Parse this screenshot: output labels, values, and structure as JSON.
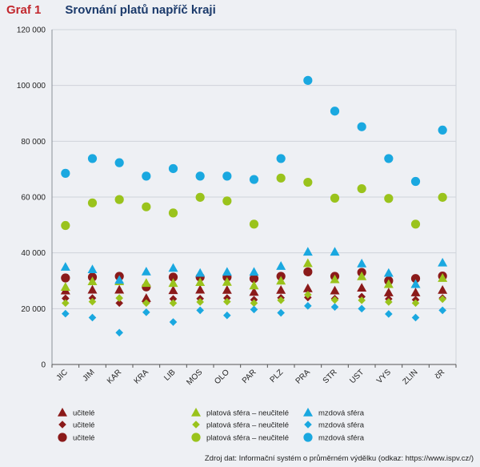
{
  "header": {
    "graf_label": "Graf 1",
    "title": "Srovnání platů napříč kraji"
  },
  "source_note": "Zdroj dat: Informační systém o průměrném výdělku (odkaz: https://www.ispv.cz/)",
  "colors": {
    "teachers": "#8b1a1a",
    "platova": "#9ac31c",
    "mzdova": "#1aa8e0",
    "grid": "#cfd3da",
    "background": "#eef0f4"
  },
  "chart_data": {
    "type": "scatter",
    "title": "Srovnání platů napříč kraji",
    "xlabel": "",
    "ylabel": "",
    "ylim": [
      0,
      120000
    ],
    "yticks": [
      0,
      20000,
      40000,
      60000,
      80000,
      100000,
      120000
    ],
    "ytick_labels": [
      "0",
      "20 000",
      "40 000",
      "60 000",
      "80 000",
      "100 000",
      "120 000"
    ],
    "grid": true,
    "legend_position": "bottom",
    "categories": [
      "JIC",
      "JIM",
      "KAR",
      "KRA",
      "LIB",
      "MOS",
      "OLO",
      "PAR",
      "PLZ",
      "PRA",
      "STR",
      "UST",
      "VYS",
      "ZLIN",
      "čR"
    ],
    "series": [
      {
        "name": "učitelé",
        "marker": "triangle",
        "color_key": "teachers",
        "values": [
          26500,
          26800,
          26800,
          23800,
          26600,
          26800,
          26700,
          26000,
          26700,
          27300,
          26500,
          27500,
          25800,
          25800,
          26700
        ]
      },
      {
        "name": "učitelé",
        "marker": "diamond",
        "color_key": "teachers",
        "values": [
          23700,
          23800,
          22000,
          22300,
          23500,
          23600,
          23800,
          23200,
          23900,
          24000,
          23600,
          24300,
          23500,
          23200,
          23800
        ]
      },
      {
        "name": "učitelé",
        "marker": "circle",
        "color_key": "teachers",
        "values": [
          31000,
          31300,
          31600,
          27800,
          31300,
          31300,
          31300,
          30800,
          31600,
          33200,
          31600,
          33000,
          30000,
          30800,
          31700
        ]
      },
      {
        "name": "platová sféra – neučitelé",
        "marker": "triangle",
        "color_key": "platova",
        "values": [
          27800,
          29800,
          29800,
          29200,
          29200,
          29500,
          29600,
          28300,
          30000,
          36300,
          30500,
          31600,
          28800,
          28800,
          31000
        ]
      },
      {
        "name": "platová sféra – neučitelé",
        "marker": "diamond",
        "color_key": "platova",
        "values": [
          22000,
          22500,
          23800,
          22000,
          22000,
          22400,
          22500,
          22000,
          23000,
          25000,
          23100,
          23000,
          22400,
          22000,
          23400
        ]
      },
      {
        "name": "platová sféra – neučitelé",
        "marker": "circle",
        "color_key": "platova",
        "values": [
          49800,
          57900,
          59100,
          56500,
          54300,
          59900,
          58600,
          50300,
          66800,
          65300,
          59600,
          63000,
          59500,
          50300,
          59900
        ]
      },
      {
        "name": "mzdová sféra",
        "marker": "triangle",
        "color_key": "mzdova",
        "values": [
          35000,
          34100,
          30300,
          33300,
          34600,
          32800,
          33200,
          33200,
          35300,
          40400,
          40400,
          36200,
          32800,
          28800,
          36500
        ]
      },
      {
        "name": "mzdová sféra",
        "marker": "diamond",
        "color_key": "mzdova",
        "values": [
          18200,
          16800,
          11400,
          18700,
          15200,
          19400,
          17600,
          19700,
          18500,
          21000,
          20600,
          20000,
          18100,
          16800,
          19400
        ]
      },
      {
        "name": "mzdová sféra",
        "marker": "circle",
        "color_key": "mzdova",
        "values": [
          68500,
          73800,
          72300,
          67500,
          70200,
          67500,
          67500,
          66300,
          73800,
          101800,
          90800,
          85200,
          73800,
          65600,
          84000
        ]
      }
    ]
  }
}
